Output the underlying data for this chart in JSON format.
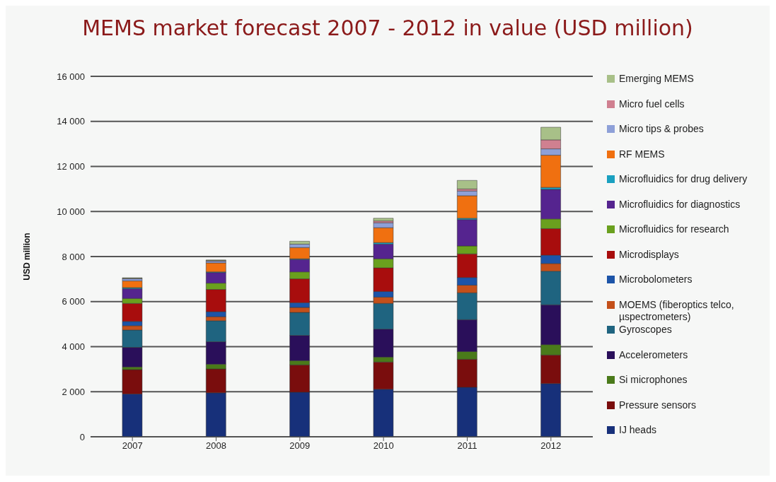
{
  "chart_data": {
    "type": "bar",
    "title": "MEMS market forecast 2007 - 2012 in value (USD million)",
    "ylabel": "USD million",
    "categories": [
      "2007",
      "2008",
      "2009",
      "2010",
      "2011",
      "2012"
    ],
    "stacked": true,
    "ylim": [
      0,
      16000
    ],
    "yticks": [
      {
        "value": 0,
        "label": "0"
      },
      {
        "value": 2000,
        "label": "2 000"
      },
      {
        "value": 4000,
        "label": "4 000"
      },
      {
        "value": 6000,
        "label": "6 000"
      },
      {
        "value": 8000,
        "label": "8 000"
      },
      {
        "value": 10000,
        "label": "10 000"
      },
      {
        "value": 12000,
        "label": "12 000"
      },
      {
        "value": 14000,
        "label": "14 000"
      },
      {
        "value": 16000,
        "label": "16 000"
      }
    ],
    "grid": "y",
    "legend": "right",
    "series": [
      {
        "name": "IJ heads",
        "color": "#17307a",
        "values": [
          1900,
          1950,
          1980,
          2110,
          2200,
          2360
        ]
      },
      {
        "name": "Pressure sensors",
        "color": "#7a0d0d",
        "values": [
          1080,
          1060,
          1210,
          1210,
          1240,
          1270
        ]
      },
      {
        "name": "Si microphones",
        "color": "#4a7a1a",
        "values": [
          120,
          210,
          190,
          220,
          340,
          460
        ]
      },
      {
        "name": "Accelerometers",
        "color": "#2a0f5a",
        "values": [
          870,
          1000,
          1120,
          1240,
          1420,
          1770
        ]
      },
      {
        "name": "Gyroscopes",
        "color": "#1f6480",
        "values": [
          770,
          930,
          1020,
          1140,
          1190,
          1490
        ]
      },
      {
        "name": "MOEMS (fiberoptics telco, µspectrometers)",
        "color": "#c4501a",
        "values": [
          190,
          180,
          220,
          280,
          340,
          340
        ]
      },
      {
        "name": "Microbolometers",
        "color": "#1c54a8",
        "values": [
          190,
          220,
          210,
          250,
          340,
          370
        ]
      },
      {
        "name": "Microdisplays",
        "color": "#a80d0d",
        "values": [
          800,
          990,
          1060,
          1050,
          1050,
          1180
        ]
      },
      {
        "name": "Microfluidics for research",
        "color": "#6aa01e",
        "values": [
          220,
          280,
          310,
          400,
          350,
          430
        ]
      },
      {
        "name": "Microfluidics for diagnostics",
        "color": "#55248f",
        "values": [
          430,
          470,
          550,
          650,
          1170,
          1310
        ]
      },
      {
        "name": "Microfluidics for drug delivery",
        "color": "#1aa0c0",
        "values": [
          50,
          30,
          30,
          70,
          60,
          90
        ]
      },
      {
        "name": "RF MEMS",
        "color": "#f07010",
        "values": [
          300,
          400,
          500,
          660,
          1000,
          1430
        ]
      },
      {
        "name": "Micro tips & probes",
        "color": "#8ea0d8",
        "values": [
          100,
          80,
          150,
          220,
          210,
          280
        ]
      },
      {
        "name": "Micro fuel cells",
        "color": "#d08090",
        "values": [
          10,
          20,
          null,
          80,
          90,
          400
        ]
      },
      {
        "name": "Emerging MEMS",
        "color": "#a8c088",
        "values": [
          30,
          30,
          130,
          120,
          380,
          560
        ]
      }
    ]
  }
}
